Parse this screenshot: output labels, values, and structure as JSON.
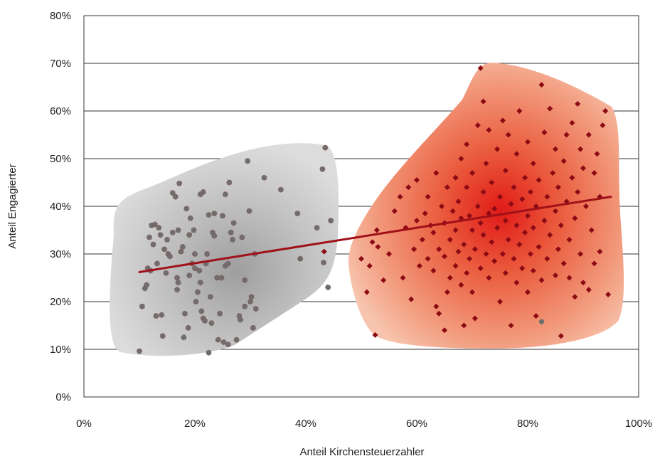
{
  "chart_data": {
    "type": "scatter",
    "title": "",
    "xlabel": "Anteil Kirchensteuerzahler",
    "ylabel": "Anteil Engagierter",
    "xlim": [
      0,
      100
    ],
    "ylim": [
      0,
      80
    ],
    "x_ticks": [
      "0%",
      "20%",
      "40%",
      "60%",
      "80%",
      "100%"
    ],
    "y_ticks": [
      "0%",
      "10%",
      "20%",
      "30%",
      "40%",
      "50%",
      "60%",
      "70%",
      "80%"
    ],
    "grid": "horizontal",
    "colors": {
      "gray_points": "#6e6e6e",
      "red_points": "#8b0a14",
      "trend_line": "#a01018",
      "gray_cloud": "#d9d9d9",
      "red_cloud": "#e8442e"
    },
    "trend_line": {
      "x": [
        10,
        95
      ],
      "y": [
        26.2,
        42.0
      ]
    },
    "series": [
      {
        "color_key": "gray_points",
        "marker": "circle",
        "points": [
          [
            10,
            9.6
          ],
          [
            10.5,
            19
          ],
          [
            11,
            22.8
          ],
          [
            11.3,
            23.5
          ],
          [
            11.5,
            27
          ],
          [
            12,
            26.5
          ],
          [
            11.8,
            33.5
          ],
          [
            12.2,
            36
          ],
          [
            12.8,
            36.2
          ],
          [
            12.5,
            32
          ],
          [
            13,
            17
          ],
          [
            13.2,
            28
          ],
          [
            13.5,
            35.5
          ],
          [
            13.8,
            34
          ],
          [
            14,
            17.2
          ],
          [
            14.2,
            12.8
          ],
          [
            14.5,
            31
          ],
          [
            14.8,
            26
          ],
          [
            15,
            33
          ],
          [
            15.2,
            30
          ],
          [
            15.5,
            29.5
          ],
          [
            16,
            34.5
          ],
          [
            16,
            42.8
          ],
          [
            16.5,
            42
          ],
          [
            16.8,
            22.5
          ],
          [
            16.8,
            25
          ],
          [
            17,
            24
          ],
          [
            17,
            35
          ],
          [
            17.2,
            44.8
          ],
          [
            17.5,
            30.5
          ],
          [
            17.8,
            31.5
          ],
          [
            18,
            12.5
          ],
          [
            18.2,
            17.5
          ],
          [
            18.5,
            39.5
          ],
          [
            18.8,
            14.5
          ],
          [
            19,
            25.5
          ],
          [
            19,
            34
          ],
          [
            19.2,
            37.5
          ],
          [
            19.5,
            28
          ],
          [
            19.8,
            35
          ],
          [
            20,
            27
          ],
          [
            20,
            30
          ],
          [
            20.2,
            20
          ],
          [
            20.5,
            22
          ],
          [
            20.8,
            26.5
          ],
          [
            21,
            24
          ],
          [
            21,
            42.5
          ],
          [
            21.2,
            18
          ],
          [
            21.5,
            16.5
          ],
          [
            21.5,
            43
          ],
          [
            21.8,
            16
          ],
          [
            22,
            28
          ],
          [
            22.2,
            30
          ],
          [
            22.5,
            38.2
          ],
          [
            22.5,
            9.3
          ],
          [
            22.8,
            21
          ],
          [
            23,
            15.5
          ],
          [
            23.2,
            34.5
          ],
          [
            23.5,
            33.8
          ],
          [
            23.5,
            38.5
          ],
          [
            24,
            25
          ],
          [
            24.2,
            12
          ],
          [
            24.5,
            17.5
          ],
          [
            24.8,
            25
          ],
          [
            25,
            38
          ],
          [
            25.2,
            11.5
          ],
          [
            25.5,
            27.5
          ],
          [
            25.5,
            42.5
          ],
          [
            26,
            28
          ],
          [
            26,
            11
          ],
          [
            26.2,
            45
          ],
          [
            26.5,
            34.5
          ],
          [
            26.8,
            33
          ],
          [
            27,
            36.5
          ],
          [
            27.5,
            12
          ],
          [
            28,
            17
          ],
          [
            28.2,
            16.2
          ],
          [
            28.5,
            33.5
          ],
          [
            29,
            19
          ],
          [
            29,
            24.5
          ],
          [
            29.5,
            49.5
          ],
          [
            29.8,
            39
          ],
          [
            30,
            20
          ],
          [
            30.2,
            21
          ],
          [
            30.5,
            14.5
          ],
          [
            30.8,
            30
          ],
          [
            31,
            18.5
          ],
          [
            32.5,
            46
          ],
          [
            35.5,
            43.5
          ],
          [
            38.5,
            38.5
          ],
          [
            39,
            29
          ],
          [
            42,
            35.5
          ],
          [
            43,
            47.8
          ],
          [
            43.2,
            28.2
          ],
          [
            43.5,
            52.3
          ],
          [
            44,
            23
          ],
          [
            44.5,
            37
          ]
        ]
      },
      {
        "color_key": "red_points",
        "marker": "diamond",
        "points": [
          [
            43.3,
            30.5
          ],
          [
            50,
            29
          ],
          [
            51,
            22
          ],
          [
            51.5,
            27.5
          ],
          [
            52,
            32.5
          ],
          [
            52.5,
            13
          ],
          [
            52.8,
            35
          ],
          [
            53,
            31.5
          ],
          [
            54,
            24.5
          ],
          [
            55,
            30
          ],
          [
            56,
            39
          ],
          [
            57,
            42
          ],
          [
            57.5,
            25
          ],
          [
            58,
            35.5
          ],
          [
            58.5,
            44
          ],
          [
            59,
            20.5
          ],
          [
            59.5,
            31
          ],
          [
            60,
            37
          ],
          [
            60,
            45.5
          ],
          [
            60.5,
            27.5
          ],
          [
            61,
            33
          ],
          [
            61.5,
            38.5
          ],
          [
            62,
            29
          ],
          [
            62,
            42
          ],
          [
            62.5,
            36
          ],
          [
            63,
            26.5
          ],
          [
            63,
            34.5
          ],
          [
            63.5,
            19
          ],
          [
            63.5,
            47
          ],
          [
            64,
            17.5
          ],
          [
            64,
            31
          ],
          [
            64.5,
            40
          ],
          [
            65,
            14
          ],
          [
            65,
            29.5
          ],
          [
            65,
            36.5
          ],
          [
            65.5,
            22
          ],
          [
            65.5,
            44
          ],
          [
            66,
            25
          ],
          [
            66,
            33
          ],
          [
            66.5,
            39
          ],
          [
            67,
            27.5
          ],
          [
            67,
            35
          ],
          [
            67,
            46
          ],
          [
            67.5,
            30.5
          ],
          [
            67.5,
            41
          ],
          [
            68,
            23.5
          ],
          [
            68,
            37.5
          ],
          [
            68,
            50
          ],
          [
            68.5,
            15
          ],
          [
            68.5,
            32
          ],
          [
            69,
            26
          ],
          [
            69,
            44
          ],
          [
            69,
            53
          ],
          [
            69.5,
            29
          ],
          [
            69.5,
            38
          ],
          [
            70,
            22
          ],
          [
            70,
            35
          ],
          [
            70,
            47
          ],
          [
            70.5,
            16.5
          ],
          [
            70.5,
            31
          ],
          [
            71,
            40
          ],
          [
            71,
            57
          ],
          [
            71.5,
            27
          ],
          [
            71.5,
            36.5
          ],
          [
            72,
            34
          ],
          [
            72,
            43
          ],
          [
            72,
            62
          ],
          [
            72.5,
            30
          ],
          [
            72.5,
            49
          ],
          [
            73,
            25
          ],
          [
            73,
            38.5
          ],
          [
            73,
            56
          ],
          [
            73.5,
            32.5
          ],
          [
            73.5,
            45
          ],
          [
            74,
            28.5
          ],
          [
            74,
            39.5
          ],
          [
            74.5,
            52
          ],
          [
            74.5,
            35.5
          ],
          [
            75,
            20
          ],
          [
            75,
            42
          ],
          [
            75.5,
            30
          ],
          [
            75.5,
            58
          ],
          [
            76,
            26
          ],
          [
            76,
            37
          ],
          [
            76,
            47.5
          ],
          [
            76.5,
            33
          ],
          [
            76.5,
            55
          ],
          [
            77,
            15
          ],
          [
            77,
            40.5
          ],
          [
            77.5,
            29
          ],
          [
            77.5,
            44
          ],
          [
            78,
            24
          ],
          [
            78,
            36
          ],
          [
            78,
            51
          ],
          [
            78.5,
            32
          ],
          [
            78.5,
            60
          ],
          [
            79,
            27
          ],
          [
            79,
            41.5
          ],
          [
            79.5,
            34.5
          ],
          [
            79.5,
            46
          ],
          [
            80,
            22
          ],
          [
            80,
            38
          ],
          [
            80,
            53.5
          ],
          [
            80.5,
            30
          ],
          [
            80.5,
            43
          ],
          [
            81,
            26.5
          ],
          [
            81,
            35.5
          ],
          [
            81,
            49
          ],
          [
            81.5,
            17
          ],
          [
            81.5,
            40
          ],
          [
            82,
            31.5
          ],
          [
            82,
            45.5
          ],
          [
            82.5,
            65.5
          ],
          [
            82.5,
            24.5
          ],
          [
            83,
            37
          ],
          [
            83,
            55.5
          ],
          [
            83.5,
            29
          ],
          [
            83.5,
            42
          ],
          [
            84,
            60.5
          ],
          [
            84,
            34
          ],
          [
            84.5,
            47
          ],
          [
            85,
            25.5
          ],
          [
            85,
            39
          ],
          [
            85,
            52
          ],
          [
            85.5,
            31
          ],
          [
            85.5,
            44
          ],
          [
            86,
            12.8
          ],
          [
            86,
            36
          ],
          [
            86.5,
            28
          ],
          [
            86.5,
            49.5
          ],
          [
            87,
            41
          ],
          [
            87,
            55
          ],
          [
            87.5,
            33
          ],
          [
            87.5,
            25
          ],
          [
            88,
            46
          ],
          [
            88,
            57.5
          ],
          [
            88.5,
            37.5
          ],
          [
            88.5,
            21
          ],
          [
            89,
            43
          ],
          [
            89,
            61.5
          ],
          [
            89.5,
            30
          ],
          [
            89.5,
            52
          ],
          [
            90,
            24
          ],
          [
            90,
            48
          ],
          [
            90.5,
            40
          ],
          [
            91,
            22.5
          ],
          [
            91,
            55
          ],
          [
            91.5,
            35
          ],
          [
            92,
            47
          ],
          [
            92,
            28
          ],
          [
            92.5,
            51
          ],
          [
            93,
            42
          ],
          [
            93,
            30.5
          ],
          [
            93.5,
            57
          ],
          [
            94,
            60
          ],
          [
            94.5,
            21.5
          ],
          [
            71.5,
            69
          ]
        ]
      }
    ],
    "highlight_point": {
      "x": 82.5,
      "y": 15.8,
      "color_key": "gray_points"
    }
  }
}
